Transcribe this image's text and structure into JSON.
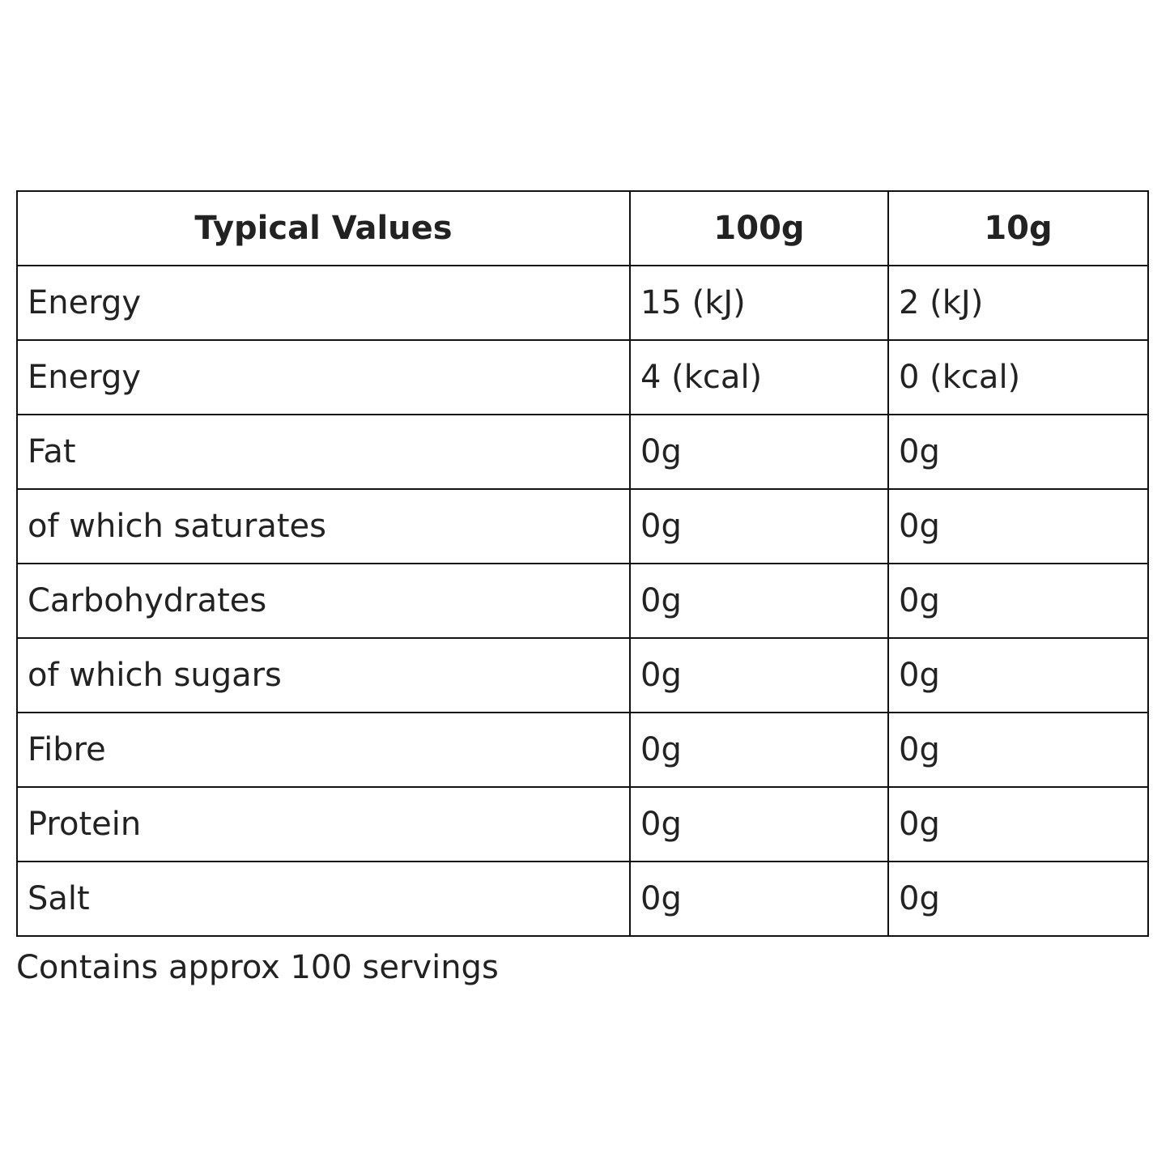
{
  "table": {
    "header": [
      "Typical Values",
      "100g",
      "10g"
    ],
    "rows": [
      [
        "Energy",
        "15 (kJ)",
        "2 (kJ)"
      ],
      [
        "Energy",
        "4 (kcal)",
        "0 (kcal)"
      ],
      [
        "Fat",
        "0g",
        "0g"
      ],
      [
        "of which saturates",
        "0g",
        "0g"
      ],
      [
        "Carbohydrates",
        "0g",
        "0g"
      ],
      [
        "of which sugars",
        "0g",
        "0g"
      ],
      [
        "Fibre",
        "0g",
        "0g"
      ],
      [
        "Protein",
        "0g",
        "0g"
      ],
      [
        "Salt",
        "0g",
        "0g"
      ]
    ]
  },
  "footer": "Contains approx 100 servings"
}
